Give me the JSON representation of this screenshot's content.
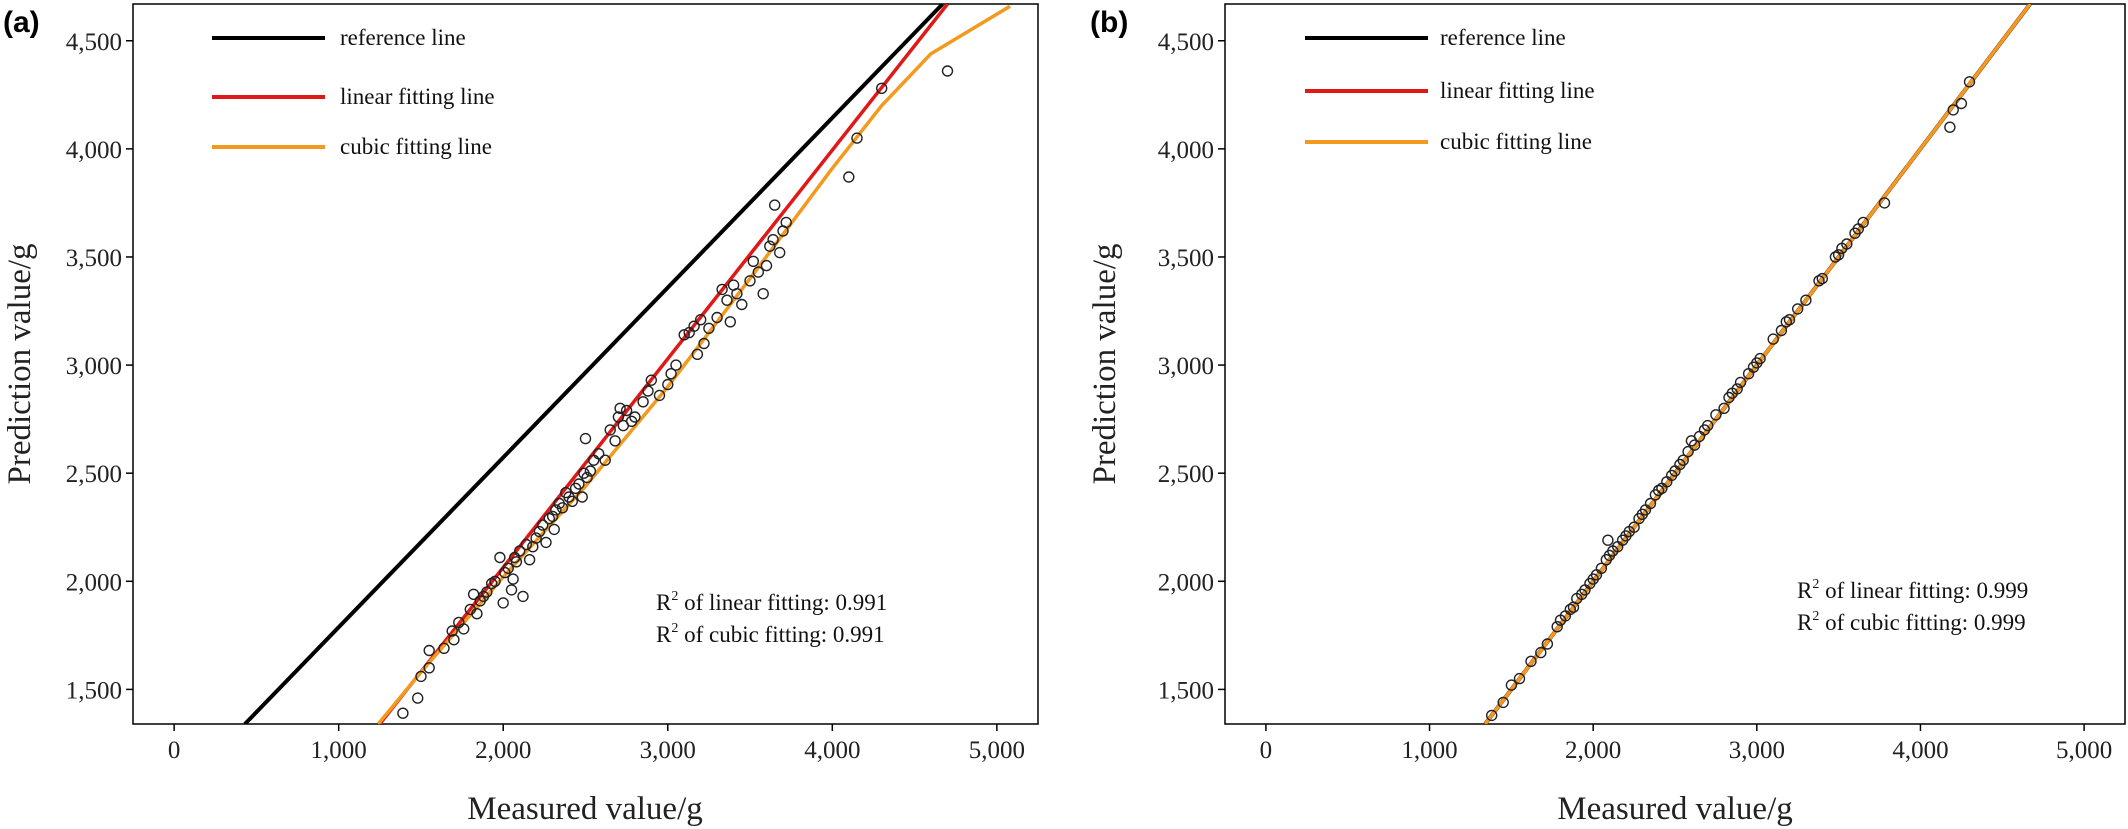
{
  "chart_data": [
    {
      "panel": "(a)",
      "type": "scatter",
      "xlabel": "Measured value/g",
      "ylabel": "Prediction value/g",
      "xlim": [
        -250,
        5250
      ],
      "ylim": [
        1340,
        4670
      ],
      "xticks": [
        "0",
        "1,000",
        "2,000",
        "3,000",
        "4,000",
        "5,000"
      ],
      "xtick_values": [
        0,
        1000,
        2000,
        3000,
        4000,
        5000
      ],
      "yticks": [
        "1,500",
        "2,000",
        "2,500",
        "3,000",
        "3,500",
        "4,000",
        "4,500"
      ],
      "ytick_values": [
        1500,
        2000,
        2500,
        3000,
        3500,
        4000,
        4500
      ],
      "legend": [
        {
          "label": "reference line",
          "color": "#000000"
        },
        {
          "label": "linear fitting line",
          "color": "#e01818"
        },
        {
          "label": "cubic fitting line",
          "color": "#f39a1e"
        }
      ],
      "lines": [
        {
          "name": "reference line",
          "color": "#000000",
          "points": [
            [
              430,
              1340
            ],
            [
              4670,
              4670
            ]
          ]
        },
        {
          "name": "linear fitting line",
          "color": "#e01818",
          "points": [
            [
              1250,
              1340
            ],
            [
              4700,
              4670
            ]
          ]
        },
        {
          "name": "cubic fitting line",
          "color": "#f39a1e",
          "points": [
            [
              1240,
              1340
            ],
            [
              1500,
              1580
            ],
            [
              2000,
              2020
            ],
            [
              2500,
              2440
            ],
            [
              3000,
              2900
            ],
            [
              3500,
              3400
            ],
            [
              4000,
              3910
            ],
            [
              4300,
              4200
            ],
            [
              4600,
              4440
            ],
            [
              5080,
              4660
            ]
          ]
        }
      ],
      "annotations": [
        {
          "prefix": "R",
          "sup": "2",
          "text": " of linear fitting: 0.991"
        },
        {
          "prefix": "R",
          "sup": "2",
          "text": " of cubic fitting: 0.991"
        }
      ],
      "points": [
        [
          1390,
          1390
        ],
        [
          1480,
          1460
        ],
        [
          1500,
          1560
        ],
        [
          1550,
          1600
        ],
        [
          1550,
          1680
        ],
        [
          1640,
          1690
        ],
        [
          1690,
          1770
        ],
        [
          1700,
          1730
        ],
        [
          1730,
          1810
        ],
        [
          1760,
          1780
        ],
        [
          1800,
          1870
        ],
        [
          1820,
          1940
        ],
        [
          1840,
          1850
        ],
        [
          1860,
          1910
        ],
        [
          1880,
          1930
        ],
        [
          1900,
          1950
        ],
        [
          1930,
          1990
        ],
        [
          1950,
          2000
        ],
        [
          1980,
          2110
        ],
        [
          2000,
          1900
        ],
        [
          2010,
          2040
        ],
        [
          2030,
          2060
        ],
        [
          2050,
          1960
        ],
        [
          2060,
          2010
        ],
        [
          2070,
          2110
        ],
        [
          2080,
          2090
        ],
        [
          2100,
          2140
        ],
        [
          2120,
          1930
        ],
        [
          2140,
          2170
        ],
        [
          2160,
          2100
        ],
        [
          2180,
          2160
        ],
        [
          2200,
          2200
        ],
        [
          2220,
          2230
        ],
        [
          2240,
          2260
        ],
        [
          2260,
          2180
        ],
        [
          2280,
          2290
        ],
        [
          2300,
          2300
        ],
        [
          2310,
          2240
        ],
        [
          2320,
          2330
        ],
        [
          2340,
          2360
        ],
        [
          2360,
          2340
        ],
        [
          2380,
          2410
        ],
        [
          2400,
          2390
        ],
        [
          2420,
          2370
        ],
        [
          2440,
          2430
        ],
        [
          2460,
          2450
        ],
        [
          2480,
          2390
        ],
        [
          2490,
          2500
        ],
        [
          2500,
          2660
        ],
        [
          2510,
          2480
        ],
        [
          2530,
          2510
        ],
        [
          2550,
          2560
        ],
        [
          2580,
          2590
        ],
        [
          2620,
          2560
        ],
        [
          2650,
          2700
        ],
        [
          2680,
          2650
        ],
        [
          2700,
          2760
        ],
        [
          2710,
          2800
        ],
        [
          2730,
          2720
        ],
        [
          2750,
          2790
        ],
        [
          2780,
          2740
        ],
        [
          2800,
          2760
        ],
        [
          2850,
          2830
        ],
        [
          2880,
          2880
        ],
        [
          2900,
          2930
        ],
        [
          2950,
          2860
        ],
        [
          3000,
          2910
        ],
        [
          3020,
          2960
        ],
        [
          3050,
          3000
        ],
        [
          3100,
          3140
        ],
        [
          3130,
          3150
        ],
        [
          3160,
          3180
        ],
        [
          3180,
          3050
        ],
        [
          3200,
          3210
        ],
        [
          3220,
          3100
        ],
        [
          3250,
          3170
        ],
        [
          3300,
          3220
        ],
        [
          3330,
          3350
        ],
        [
          3360,
          3300
        ],
        [
          3380,
          3200
        ],
        [
          3400,
          3370
        ],
        [
          3420,
          3330
        ],
        [
          3450,
          3280
        ],
        [
          3500,
          3390
        ],
        [
          3520,
          3480
        ],
        [
          3550,
          3430
        ],
        [
          3580,
          3330
        ],
        [
          3600,
          3460
        ],
        [
          3620,
          3550
        ],
        [
          3640,
          3580
        ],
        [
          3650,
          3740
        ],
        [
          3680,
          3520
        ],
        [
          3700,
          3620
        ],
        [
          3720,
          3660
        ],
        [
          4100,
          3870
        ],
        [
          4150,
          4050
        ],
        [
          4300,
          4280
        ],
        [
          4700,
          4360
        ]
      ]
    },
    {
      "panel": "(b)",
      "type": "scatter",
      "xlabel": "Measured value/g",
      "ylabel": "Prediction value/g",
      "xlim": [
        -250,
        5250
      ],
      "ylim": [
        1340,
        4670
      ],
      "xticks": [
        "0",
        "1,000",
        "2,000",
        "3,000",
        "4,000",
        "5,000"
      ],
      "xtick_values": [
        0,
        1000,
        2000,
        3000,
        4000,
        5000
      ],
      "yticks": [
        "1,500",
        "2,000",
        "2,500",
        "3,000",
        "3,500",
        "4,000",
        "4,500"
      ],
      "ytick_values": [
        1500,
        2000,
        2500,
        3000,
        3500,
        4000,
        4500
      ],
      "legend": [
        {
          "label": "reference line",
          "color": "#000000"
        },
        {
          "label": "linear fitting line",
          "color": "#e01818"
        },
        {
          "label": "cubic fitting line",
          "color": "#f39a1e"
        }
      ],
      "lines": [
        {
          "name": "reference line",
          "color": "#000000",
          "points": [
            [
              1340,
              1340
            ],
            [
              4670,
              4670
            ]
          ]
        },
        {
          "name": "linear fitting line",
          "color": "#e01818",
          "points": [
            [
              1340,
              1340
            ],
            [
              4670,
              4670
            ]
          ]
        },
        {
          "name": "cubic fitting line",
          "color": "#f39a1e",
          "points": [
            [
              1340,
              1340
            ],
            [
              4670,
              4670
            ]
          ]
        }
      ],
      "annotations": [
        {
          "prefix": "R",
          "sup": "2",
          "text": " of linear fitting: 0.999"
        },
        {
          "prefix": "R",
          "sup": "2",
          "text": " of cubic fitting: 0.999"
        }
      ],
      "points": [
        [
          1380,
          1380
        ],
        [
          1450,
          1440
        ],
        [
          1500,
          1520
        ],
        [
          1550,
          1550
        ],
        [
          1620,
          1630
        ],
        [
          1680,
          1670
        ],
        [
          1720,
          1710
        ],
        [
          1780,
          1790
        ],
        [
          1800,
          1820
        ],
        [
          1830,
          1840
        ],
        [
          1860,
          1870
        ],
        [
          1880,
          1880
        ],
        [
          1900,
          1920
        ],
        [
          1930,
          1940
        ],
        [
          1950,
          1960
        ],
        [
          1980,
          1990
        ],
        [
          2000,
          2010
        ],
        [
          2020,
          2030
        ],
        [
          2050,
          2060
        ],
        [
          2080,
          2100
        ],
        [
          2090,
          2190
        ],
        [
          2100,
          2120
        ],
        [
          2120,
          2140
        ],
        [
          2150,
          2160
        ],
        [
          2180,
          2190
        ],
        [
          2200,
          2210
        ],
        [
          2220,
          2230
        ],
        [
          2250,
          2250
        ],
        [
          2280,
          2290
        ],
        [
          2300,
          2310
        ],
        [
          2320,
          2330
        ],
        [
          2350,
          2360
        ],
        [
          2380,
          2400
        ],
        [
          2400,
          2420
        ],
        [
          2420,
          2430
        ],
        [
          2450,
          2460
        ],
        [
          2480,
          2490
        ],
        [
          2500,
          2510
        ],
        [
          2530,
          2540
        ],
        [
          2550,
          2560
        ],
        [
          2580,
          2600
        ],
        [
          2600,
          2650
        ],
        [
          2620,
          2630
        ],
        [
          2650,
          2670
        ],
        [
          2680,
          2700
        ],
        [
          2700,
          2720
        ],
        [
          2750,
          2770
        ],
        [
          2800,
          2800
        ],
        [
          2830,
          2850
        ],
        [
          2850,
          2870
        ],
        [
          2880,
          2890
        ],
        [
          2900,
          2920
        ],
        [
          2950,
          2960
        ],
        [
          2980,
          2990
        ],
        [
          3000,
          3010
        ],
        [
          3020,
          3030
        ],
        [
          3100,
          3120
        ],
        [
          3150,
          3160
        ],
        [
          3180,
          3200
        ],
        [
          3200,
          3210
        ],
        [
          3250,
          3260
        ],
        [
          3300,
          3300
        ],
        [
          3380,
          3390
        ],
        [
          3400,
          3400
        ],
        [
          3480,
          3500
        ],
        [
          3500,
          3510
        ],
        [
          3520,
          3540
        ],
        [
          3550,
          3560
        ],
        [
          3600,
          3610
        ],
        [
          3620,
          3630
        ],
        [
          3650,
          3660
        ],
        [
          3780,
          3750
        ],
        [
          4180,
          4100
        ],
        [
          4200,
          4180
        ],
        [
          4250,
          4210
        ],
        [
          4300,
          4310
        ]
      ]
    }
  ]
}
